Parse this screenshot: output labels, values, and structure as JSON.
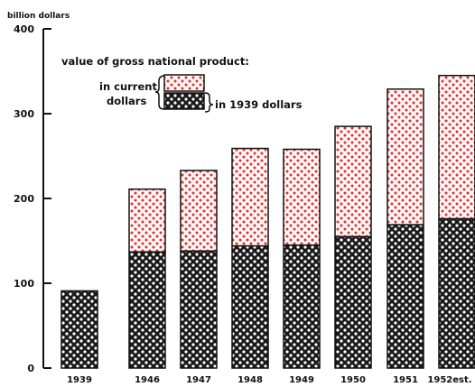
{
  "chart_data": {
    "type": "bar",
    "stacked": "overlay",
    "title": "value of gross national product:",
    "ylabel": "billion dollars",
    "xlabel": "",
    "ylim": [
      0,
      400
    ],
    "yticks": [
      "0",
      "100",
      "200",
      "300",
      "400"
    ],
    "grid": false,
    "categories": [
      "1939",
      "1946",
      "1947",
      "1948",
      "1949",
      "1950",
      "1951",
      "1952est."
    ],
    "series": [
      {
        "name": "in current dollars",
        "values": [
          91,
          211,
          233,
          259,
          258,
          285,
          329,
          345
        ],
        "color": "#e03030"
      },
      {
        "name": "in 1939 dollars",
        "values": [
          91,
          137,
          138,
          144,
          145,
          155,
          169,
          176
        ],
        "color": "#111111"
      }
    ],
    "legend": {
      "current_line1": "in current",
      "current_line2": "dollars",
      "constant": "in 1939 dollars"
    }
  }
}
